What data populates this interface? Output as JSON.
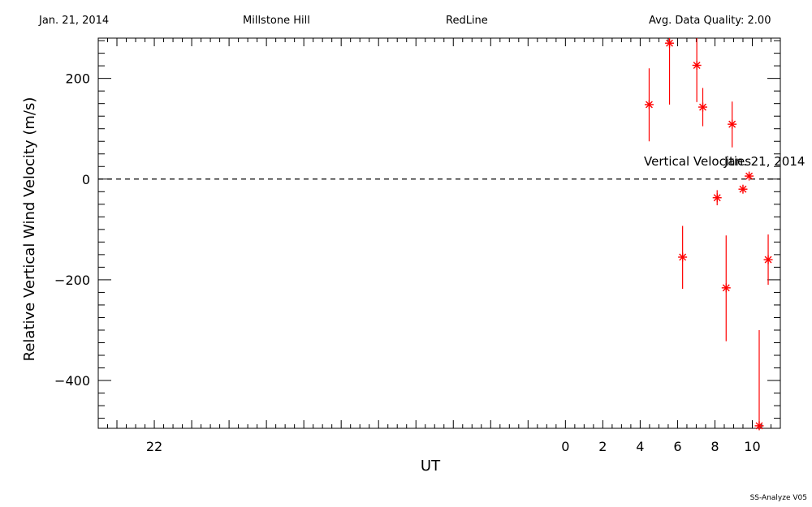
{
  "header": {
    "date": "Jan. 21, 2014",
    "site": "Millstone Hill",
    "line": "RedLine",
    "quality": "Avg. Data Quality: 2.00"
  },
  "footer": {
    "version": "SS-Analyze V05"
  },
  "colors": {
    "data": "#ff0000",
    "axes": "#000000"
  },
  "chart_data": {
    "type": "scatter",
    "title": "",
    "xlabel": "UT",
    "ylabel": "Relative Vertical Wind Velocity (m/s)",
    "xlim": [
      -25,
      11.5
    ],
    "ylim": [
      -495,
      280
    ],
    "x_ticks": [
      -22,
      0,
      2,
      4,
      6,
      8,
      10
    ],
    "x_tick_labels": [
      "22",
      "0",
      "2",
      "4",
      "6",
      "8",
      "10"
    ],
    "y_ticks": [
      200,
      0,
      -200,
      -400
    ],
    "y_tick_labels": [
      "200",
      "0",
      "−200",
      "−400"
    ],
    "reference_line": {
      "y": 0,
      "style": "dashed"
    },
    "annotations": [
      {
        "text": "Vertical Velocities",
        "x": 4.2,
        "y": 35
      },
      {
        "text": "Jan. 21, 2014",
        "x": 8.5,
        "y": 35
      }
    ],
    "series": [
      {
        "marker": "asterisk",
        "errorbars": true,
        "points": [
          {
            "x": 4.48,
            "y": 148,
            "lo": 75,
            "hi": 220
          },
          {
            "x": 5.57,
            "y": 270,
            "lo": 148,
            "hi": 280
          },
          {
            "x": 6.27,
            "y": -155,
            "lo": -218,
            "hi": -93
          },
          {
            "x": 7.03,
            "y": 226,
            "lo": 153,
            "hi": 280
          },
          {
            "x": 7.35,
            "y": 143,
            "lo": 105,
            "hi": 181
          },
          {
            "x": 8.12,
            "y": -37,
            "lo": -52,
            "hi": -22
          },
          {
            "x": 8.6,
            "y": -216,
            "lo": -322,
            "hi": -112
          },
          {
            "x": 8.92,
            "y": 109,
            "lo": 63,
            "hi": 154
          },
          {
            "x": 9.5,
            "y": -20,
            "lo": -24,
            "hi": -16
          },
          {
            "x": 9.83,
            "y": 6,
            "lo": 2,
            "hi": 10
          },
          {
            "x": 10.37,
            "y": -490,
            "lo": -495,
            "hi": -300
          },
          {
            "x": 10.85,
            "y": -160,
            "lo": -210,
            "hi": -110
          }
        ]
      }
    ]
  }
}
